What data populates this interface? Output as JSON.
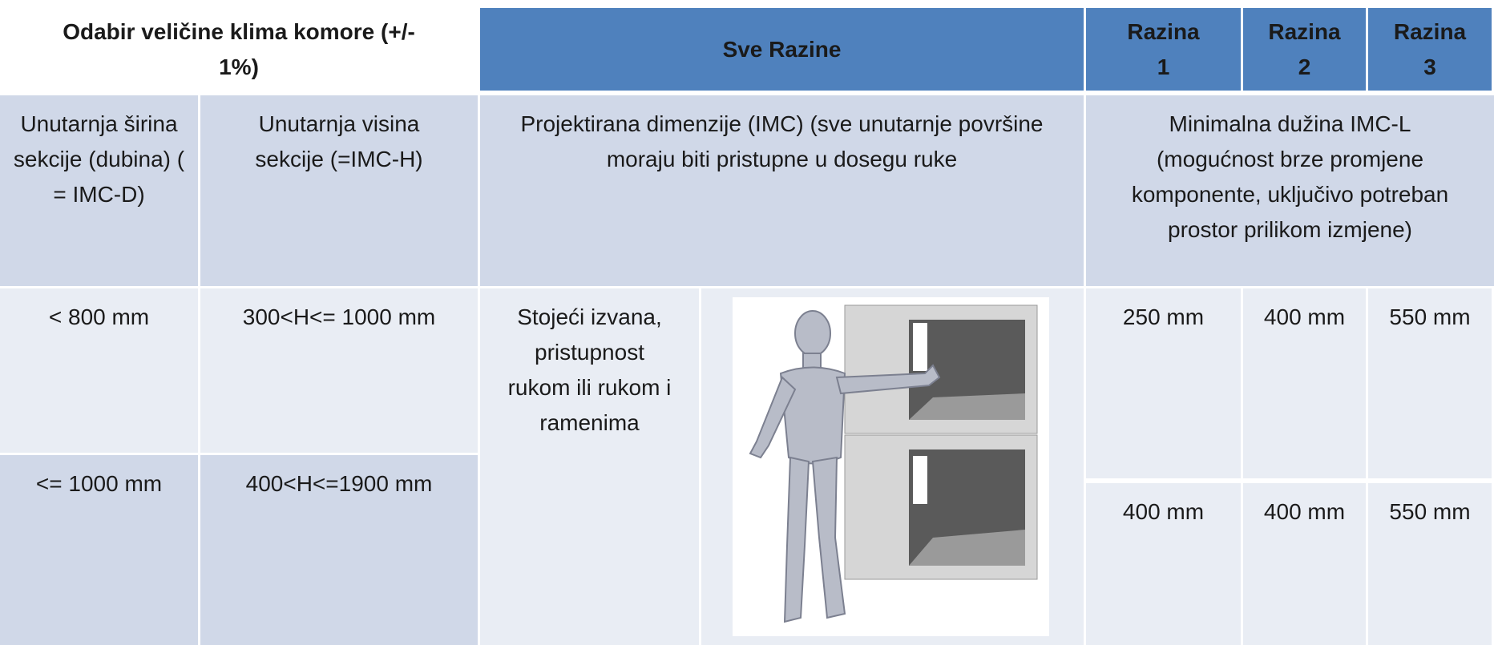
{
  "header": {
    "title": "Odabir veličine klima komore (+/- 1%)",
    "all_levels": "Sve Razine",
    "levels": [
      "Razina 1",
      "Razina 2",
      "Razina 3"
    ]
  },
  "subheader": {
    "inner_width": "Unutarnja širina sekcije (dubina) ( = IMC-D)",
    "inner_height": "Unutarnja visina sekcije (=IMC-H)",
    "projected": "Projektirana dimenzije (IMC) (sve unutarnje površine moraju biti pristupne u dosegu ruke",
    "min_length": "Minimalna dužina IMC-L (mogućnost brze promjene komponente, uključivo potreban prostor prilikom izmjene)"
  },
  "rows": [
    {
      "width": "< 800 mm",
      "height": "300<H<= 1000 mm"
    },
    {
      "width": "<= 1000 mm",
      "height": "400<H<=1900 mm"
    }
  ],
  "access": "Stojeći izvana, pristupnost rukom ili rukom  i ramenima",
  "min_lengths": [
    [
      "250 mm",
      "400 mm",
      "550 mm"
    ],
    [
      "400 mm",
      "400 mm",
      "550 mm"
    ]
  ]
}
